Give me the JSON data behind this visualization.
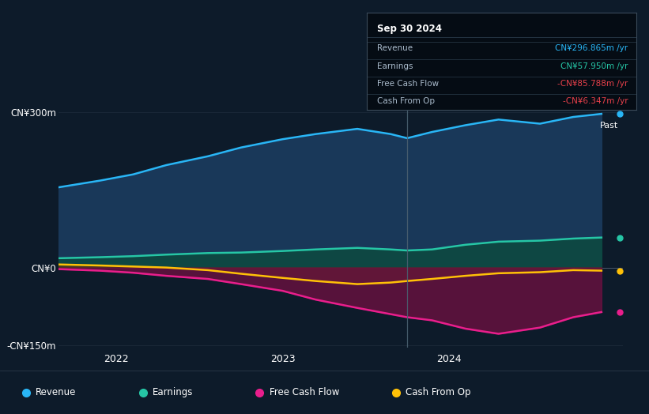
{
  "bg_color": "#0d1b2a",
  "plot_bg_color": "#0d1b2a",
  "ylabel_300": "CN¥300m",
  "ylabel_0": "CN¥0",
  "ylabel_neg150": "-CN¥150m",
  "ylim": [
    -155,
    325
  ],
  "xlim_start": 2021.65,
  "xlim_end": 2025.05,
  "divider_x": 2023.75,
  "past_label": "Past",
  "xtick_labels": [
    "2022",
    "2023",
    "2024"
  ],
  "xtick_positions": [
    2022,
    2023,
    2024
  ],
  "tooltip": {
    "date": "Sep 30 2024",
    "rows": [
      {
        "label": "Revenue",
        "value": "CN¥296.865m /yr",
        "value_color": "#29b6f6"
      },
      {
        "label": "Earnings",
        "value": "CN¥57.950m /yr",
        "value_color": "#26c6a6"
      },
      {
        "label": "Free Cash Flow",
        "value": "-CN¥85.788m /yr",
        "value_color": "#e8404a"
      },
      {
        "label": "Cash From Op",
        "value": "-CN¥6.347m /yr",
        "value_color": "#e8404a"
      }
    ]
  },
  "legend": [
    {
      "label": "Revenue",
      "color": "#29b6f6"
    },
    {
      "label": "Earnings",
      "color": "#26c6a6"
    },
    {
      "label": "Free Cash Flow",
      "color": "#e91e8c"
    },
    {
      "label": "Cash From Op",
      "color": "#ffc107"
    }
  ],
  "revenue": {
    "x": [
      2021.65,
      2021.9,
      2022.1,
      2022.3,
      2022.55,
      2022.75,
      2023.0,
      2023.2,
      2023.45,
      2023.65,
      2023.75,
      2023.9,
      2024.1,
      2024.3,
      2024.55,
      2024.75,
      2024.92
    ],
    "y": [
      155,
      168,
      180,
      198,
      215,
      232,
      248,
      258,
      268,
      258,
      250,
      262,
      275,
      286,
      278,
      291,
      297
    ],
    "line_color": "#29b6f6",
    "fill_color": "#1a3a5c",
    "fill_alpha": 0.95,
    "lw": 1.8
  },
  "earnings": {
    "x": [
      2021.65,
      2021.9,
      2022.1,
      2022.3,
      2022.55,
      2022.75,
      2023.0,
      2023.2,
      2023.45,
      2023.65,
      2023.75,
      2023.9,
      2024.1,
      2024.3,
      2024.55,
      2024.75,
      2024.92
    ],
    "y": [
      18,
      20,
      22,
      25,
      28,
      29,
      32,
      35,
      38,
      35,
      33,
      35,
      44,
      50,
      52,
      56,
      58
    ],
    "line_color": "#26c6a6",
    "fill_color": "#0d4a40",
    "fill_alpha": 0.85,
    "lw": 1.8
  },
  "free_cash_flow": {
    "x": [
      2021.65,
      2021.9,
      2022.1,
      2022.3,
      2022.55,
      2022.75,
      2023.0,
      2023.2,
      2023.45,
      2023.65,
      2023.75,
      2023.9,
      2024.1,
      2024.3,
      2024.55,
      2024.75,
      2024.92
    ],
    "y": [
      -3,
      -6,
      -10,
      -16,
      -22,
      -32,
      -45,
      -62,
      -78,
      -90,
      -96,
      -102,
      -118,
      -128,
      -116,
      -96,
      -86
    ],
    "line_color": "#e91e8c",
    "fill_color": "#6a1040",
    "fill_alpha": 0.8,
    "lw": 1.8
  },
  "cash_from_op": {
    "x": [
      2021.65,
      2021.9,
      2022.1,
      2022.3,
      2022.55,
      2022.75,
      2023.0,
      2023.2,
      2023.45,
      2023.65,
      2023.75,
      2023.9,
      2024.1,
      2024.3,
      2024.55,
      2024.75,
      2024.92
    ],
    "y": [
      6,
      4,
      2,
      0,
      -5,
      -12,
      -20,
      -26,
      -32,
      -29,
      -26,
      -22,
      -16,
      -11,
      -9,
      -5,
      -6
    ],
    "line_color": "#ffc107",
    "fill_color": "#5d3a10",
    "fill_alpha": 0.65,
    "lw": 1.8
  }
}
